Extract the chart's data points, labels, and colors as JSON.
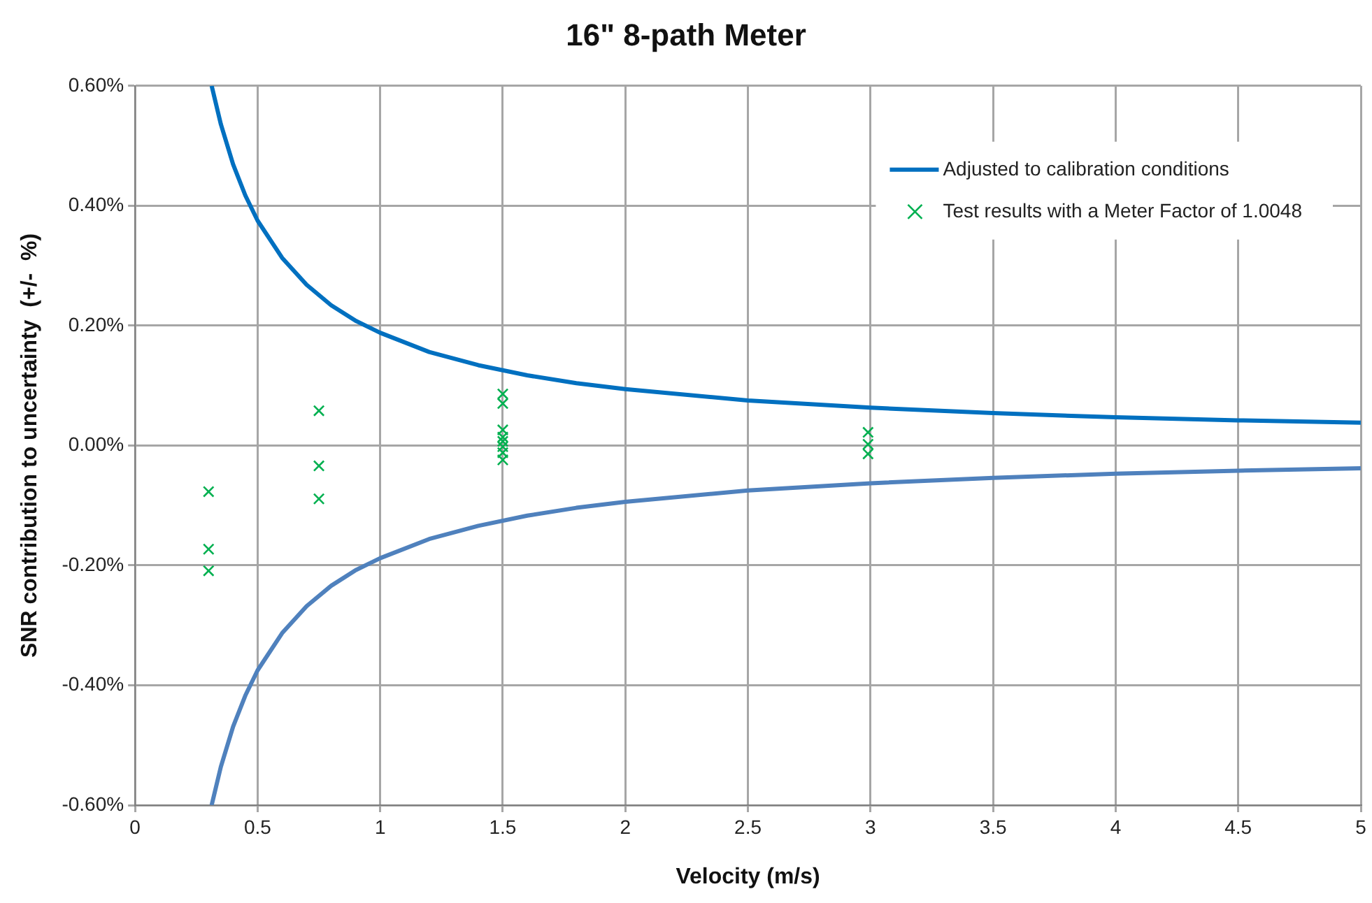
{
  "chart_data": {
    "type": "line",
    "title": "16\" 8-path Meter",
    "xlabel": "Velocity (m/s)",
    "ylabel": "SNR contribution to uncertainty  (+/-  %)",
    "xlim": [
      0,
      5
    ],
    "xticks": [
      0,
      0.5,
      1,
      1.5,
      2,
      2.5,
      3,
      3.5,
      4,
      4.5,
      5
    ],
    "ylim": [
      -0.6,
      0.6
    ],
    "yticks": [
      {
        "value": -0.6,
        "label": "-0.60%"
      },
      {
        "value": -0.4,
        "label": "-0.40%"
      },
      {
        "value": -0.2,
        "label": "-0.20%"
      },
      {
        "value": 0,
        "label": "0.00%"
      },
      {
        "value": 0.2,
        "label": "0.20%"
      },
      {
        "value": 0.4,
        "label": "0.40%"
      },
      {
        "value": 0.6,
        "label": "0.60%"
      }
    ],
    "grid": true,
    "legend": "top right",
    "series": [
      {
        "name": "Adjusted to calibration conditions",
        "type": "line",
        "color": "#0070c0",
        "marker": "none",
        "x": [
          0.3125,
          0.35,
          0.4,
          0.45,
          0.5,
          0.6,
          0.7,
          0.8,
          0.9,
          1,
          1.2,
          1.4,
          1.6,
          1.8,
          2,
          2.5,
          3,
          3.5,
          4,
          4.5,
          5
        ],
        "values": [
          0.6,
          0.536,
          0.469,
          0.417,
          0.375,
          0.313,
          0.268,
          0.234,
          0.208,
          0.188,
          0.156,
          0.134,
          0.117,
          0.104,
          0.094,
          0.075,
          0.063,
          0.054,
          0.047,
          0.042,
          0.038
        ]
      },
      {
        "type": "line",
        "color": "#4f81bd",
        "marker": "none",
        "x": [
          0.3125,
          0.35,
          0.4,
          0.45,
          0.5,
          0.6,
          0.7,
          0.8,
          0.9,
          1,
          1.2,
          1.4,
          1.6,
          1.8,
          2,
          2.5,
          3,
          3.5,
          4,
          4.5,
          5
        ],
        "values": [
          -0.6,
          -0.536,
          -0.469,
          -0.417,
          -0.375,
          -0.313,
          -0.268,
          -0.234,
          -0.208,
          -0.188,
          -0.156,
          -0.134,
          -0.117,
          -0.104,
          -0.094,
          -0.075,
          -0.063,
          -0.054,
          -0.047,
          -0.042,
          -0.038
        ]
      },
      {
        "name": "Test results with a Meter Factor of 1.0048",
        "type": "scatter",
        "color": "#00b050",
        "marker": "cross",
        "x": [
          0.3,
          0.3,
          0.3,
          0.75,
          0.75,
          0.75,
          1.5,
          1.5,
          1.5,
          1.5,
          1.5,
          1.5,
          1.5,
          1.5,
          2.99,
          2.99,
          2.99
        ],
        "values": [
          -0.077,
          -0.173,
          -0.209,
          0.058,
          -0.034,
          -0.089,
          0.086,
          0.07,
          0.026,
          0.014,
          0.007,
          -0.002,
          -0.012,
          -0.024,
          0.022,
          0.002,
          -0.014
        ]
      }
    ]
  }
}
